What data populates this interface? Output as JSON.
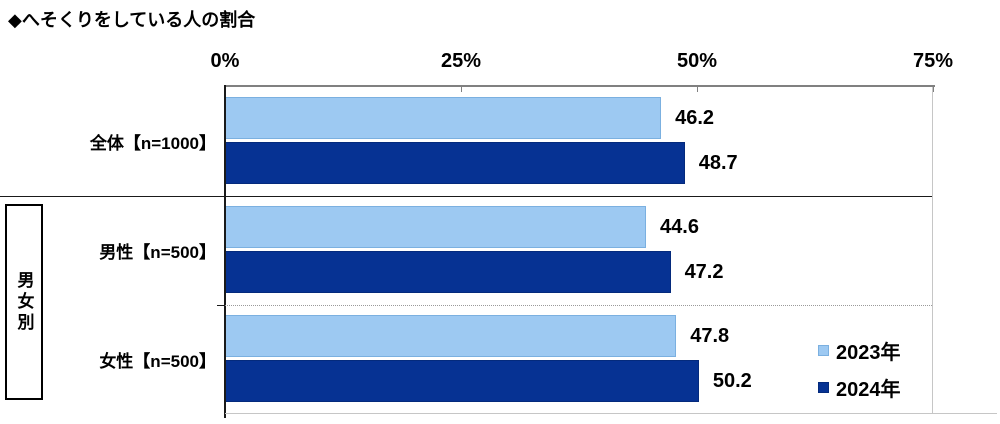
{
  "title": "◆へそくりをしている人の割合",
  "chart_data": {
    "type": "bar",
    "orientation": "horizontal",
    "title": "◆へそくりをしている人の割合",
    "categories": [
      "全体【n=1000】",
      "男性【n=500】",
      "女性【n=500】"
    ],
    "group_label": "男女別",
    "grouped_categories_label_applies_to": [
      "男性【n=500】",
      "女性【n=500】"
    ],
    "series": [
      {
        "name": "2023年",
        "values": [
          46.2,
          44.6,
          47.8
        ],
        "color": "#9dc9f2",
        "border_color": "#7bb0e0"
      },
      {
        "name": "2024年",
        "values": [
          48.7,
          47.2,
          50.2
        ],
        "color": "#063293",
        "border_color": "#042a7c"
      }
    ],
    "value_labels": [
      [
        "46.2",
        "44.6",
        "47.8"
      ],
      [
        "48.7",
        "47.2",
        "50.2"
      ]
    ],
    "x_axis": {
      "ticks": [
        "0%",
        "25%",
        "50%",
        "75%"
      ],
      "tick_values": [
        0,
        25,
        50,
        75
      ],
      "min": 0,
      "max": 75
    },
    "legend": {
      "entries": [
        "2023年",
        "2024年"
      ],
      "position": "inside-bottom-right"
    },
    "grid": false,
    "colors": {
      "axis_line": "#808080",
      "category_axis": "#1a1a1a",
      "frame": "#c6c6c6",
      "solid_separator": "#1a1a1a",
      "dotted_separator": "#9a9a9a",
      "text": "#000000",
      "background": "#ffffff"
    }
  }
}
